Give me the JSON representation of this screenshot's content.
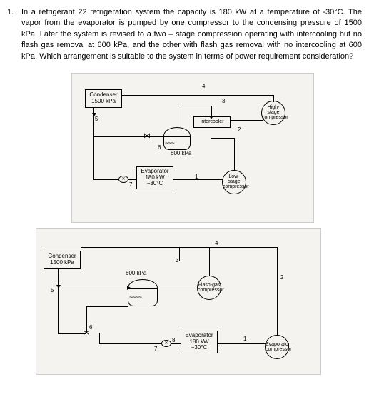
{
  "problem": {
    "number": "1.",
    "text": "In a refrigerant 22 refrigeration system the capacity is 180 kW at a temperature of -30°C. The vapor from the evaporator is pumped by one compressor to the condensing pressure of 1500 kPa. Later the system is revised to a two – stage compression operating with intercooling but no flash gas removal at 600 kPa, and the other with flash gas removal with no intercooling at 600 kPa. Which arrangement is suitable to the system in terms of power requirement consideration?"
  },
  "d1": {
    "condenser": "Condenser\n1500 kPa",
    "intercooler": "Intercooler",
    "high_comp": "High-stage compressor",
    "low_comp": "Low-stage compressor",
    "evaporator": "Evaporator\n180 kW\n−30°C",
    "tank_label": "600 kPa",
    "pt1": "1",
    "pt2": "2",
    "pt3": "3",
    "pt4": "4",
    "pt5": "5",
    "pt6": "6",
    "pt7": "7"
  },
  "d2": {
    "condenser": "Condenser\n1500 kPa",
    "flash_comp": "Flash-gas compressor",
    "evap_comp": "Evaporator compressor",
    "evaporator": "Evaporator\n180 kW\n−30°C",
    "tank_label": "600 kPa",
    "pt1": "1",
    "pt2": "2",
    "pt3": "3",
    "pt4": "4",
    "pt5": "5",
    "pt6": "6",
    "pt7": "7",
    "pt8": "8"
  }
}
